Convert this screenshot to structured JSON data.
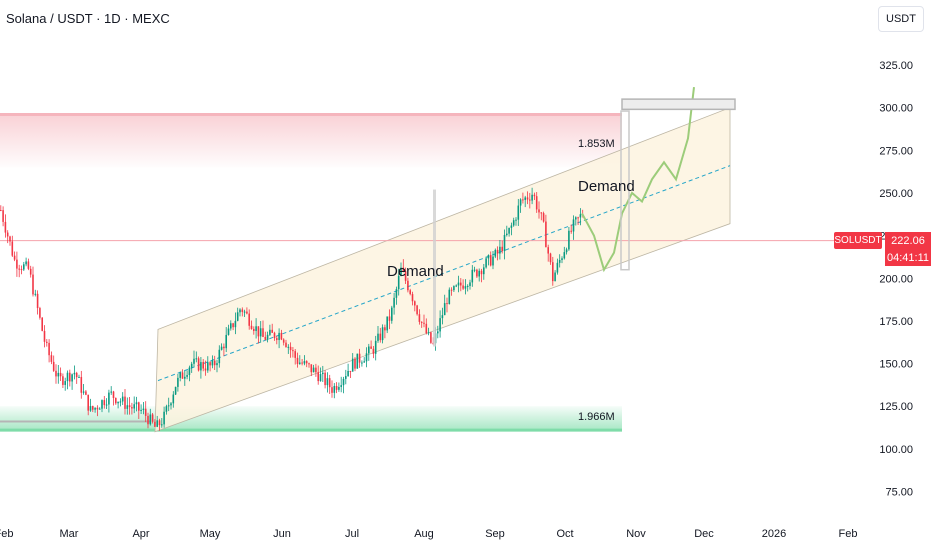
{
  "header": {
    "title": "Solana / USDT · 1D · MEXC",
    "currency_button": "USDT"
  },
  "price_tag": {
    "symbol": "SOLUSDT",
    "price": "222.06",
    "countdown": "04:41:11"
  },
  "colors": {
    "up": "#089981",
    "down": "#f23645",
    "projection": "#9ccc7a",
    "channel_fill": "#fdf3df",
    "supply_zone": "#f7c2c8",
    "demand_zone": "#9fe5bf"
  },
  "chart_data": {
    "type": "candlestick",
    "title": "Solana / USDT · 1D · MEXC",
    "xlabel": "",
    "ylabel": "",
    "x_ticks": [
      "Feb",
      "Mar",
      "Apr",
      "May",
      "Jun",
      "Jul",
      "Aug",
      "Sep",
      "Oct",
      "Nov",
      "Dec",
      "2026",
      "Feb"
    ],
    "y_ticks": [
      325,
      300,
      275,
      250,
      225,
      200,
      175,
      150,
      125,
      100,
      75
    ],
    "y_tick_labels": [
      "325.00",
      "300.00",
      "275.00",
      "250.00",
      "225.00",
      "200.00",
      "175.00",
      "150.00",
      "125.00",
      "100.00",
      "75.00"
    ],
    "ylim": [
      63,
      340
    ],
    "y_axis_position": "right",
    "grid": false,
    "last_price": 222.06,
    "annotations": {
      "demand_labels": [
        "Demand",
        "Demand"
      ],
      "volume_labels": [
        "1.853M",
        "1.966M"
      ]
    },
    "price_path": [
      [
        0,
        240
      ],
      [
        14,
        210
      ],
      [
        28,
        205
      ],
      [
        45,
        160
      ],
      [
        58,
        140
      ],
      [
        74,
        145
      ],
      [
        90,
        122
      ],
      [
        110,
        132
      ],
      [
        128,
        125
      ],
      [
        142,
        122
      ],
      [
        155,
        112
      ],
      [
        163,
        118
      ],
      [
        175,
        138
      ],
      [
        190,
        150
      ],
      [
        212,
        148
      ],
      [
        228,
        168
      ],
      [
        240,
        183
      ],
      [
        262,
        165
      ],
      [
        280,
        168
      ],
      [
        296,
        152
      ],
      [
        315,
        145
      ],
      [
        332,
        135
      ],
      [
        352,
        150
      ],
      [
        372,
        158
      ],
      [
        390,
        178
      ],
      [
        400,
        205
      ],
      [
        410,
        192
      ],
      [
        422,
        172
      ],
      [
        432,
        160
      ],
      [
        446,
        188
      ],
      [
        460,
        196
      ],
      [
        478,
        205
      ],
      [
        498,
        215
      ],
      [
        512,
        232
      ],
      [
        520,
        245
      ],
      [
        532,
        250
      ],
      [
        542,
        232
      ],
      [
        552,
        200
      ],
      [
        562,
        215
      ],
      [
        572,
        230
      ],
      [
        582,
        238
      ]
    ],
    "projection_path": [
      [
        582,
        238
      ],
      [
        594,
        225
      ],
      [
        604,
        205
      ],
      [
        614,
        215
      ],
      [
        622,
        238
      ],
      [
        632,
        250
      ],
      [
        642,
        245
      ],
      [
        652,
        258
      ],
      [
        664,
        268
      ],
      [
        676,
        258
      ],
      [
        688,
        282
      ],
      [
        694,
        312
      ]
    ],
    "channel": {
      "lower": [
        [
          155,
          110
        ],
        [
          730,
          232
        ]
      ],
      "upper": [
        [
          158,
          170
        ],
        [
          730,
          300
        ]
      ],
      "mid": [
        [
          158,
          140
        ],
        [
          730,
          266
        ]
      ]
    },
    "zones": {
      "supply": [
        265,
        296
      ],
      "demand": [
        111,
        125
      ]
    }
  }
}
